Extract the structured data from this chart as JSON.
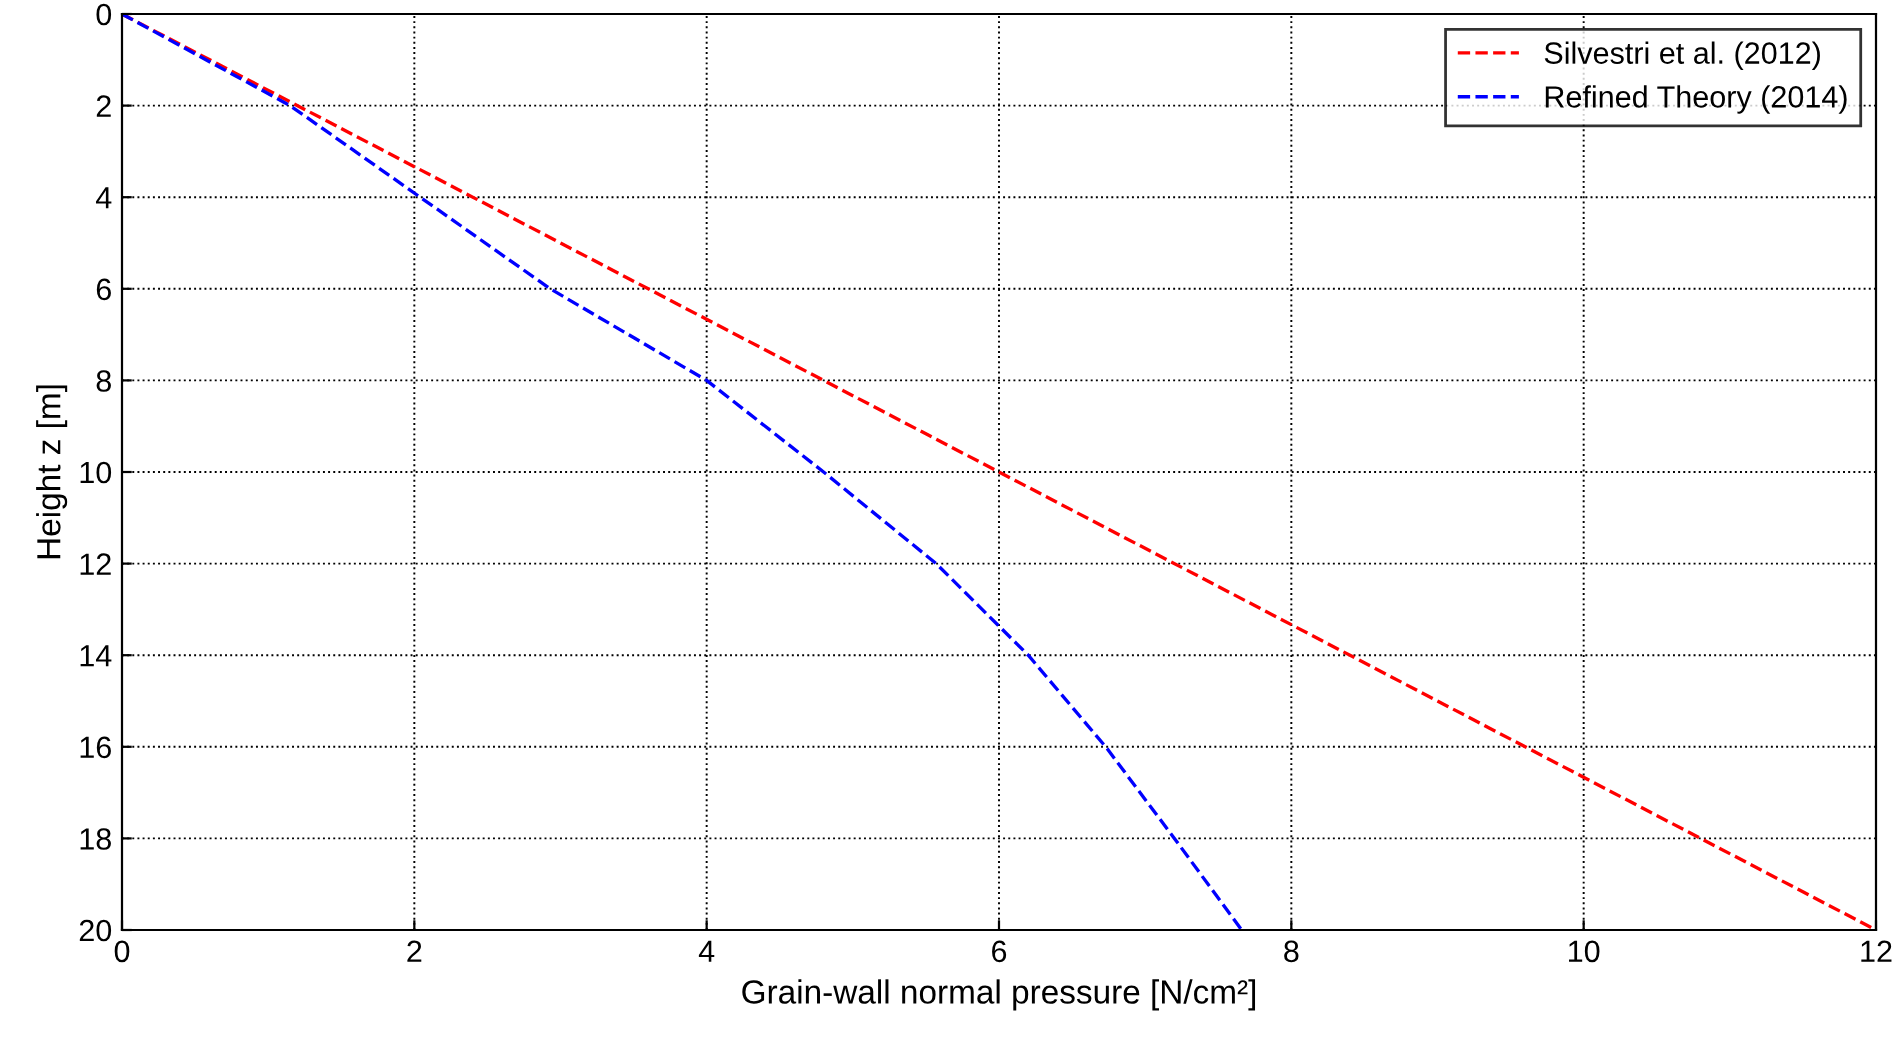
{
  "chart_data": {
    "type": "line",
    "xlabel": "Grain-wall normal pressure [N/cm²]",
    "ylabel": "Height z [m]",
    "series": [
      {
        "name": "Silvestri et al. (2012)",
        "color": "#ff0000",
        "x": [
          0,
          12
        ],
        "values": [
          0,
          20
        ]
      },
      {
        "name": "Refined Theory (2014)",
        "color": "#0000ff",
        "x": [
          0,
          1.15,
          2.04,
          2.93,
          4.0,
          4.8,
          5.57,
          6.2,
          6.73,
          7.2,
          7.66
        ],
        "values": [
          0,
          2,
          4,
          6,
          8,
          10,
          12,
          14,
          16,
          18,
          20
        ]
      }
    ],
    "xlim": [
      0,
      12
    ],
    "ylim": [
      20,
      0
    ],
    "xticks": [
      0,
      2,
      4,
      6,
      8,
      10,
      12
    ],
    "yticks": [
      0,
      2,
      4,
      6,
      8,
      10,
      12,
      14,
      16,
      18,
      20
    ],
    "grid": true,
    "legend": "top right",
    "line_style": "dashed",
    "marker": "none"
  }
}
